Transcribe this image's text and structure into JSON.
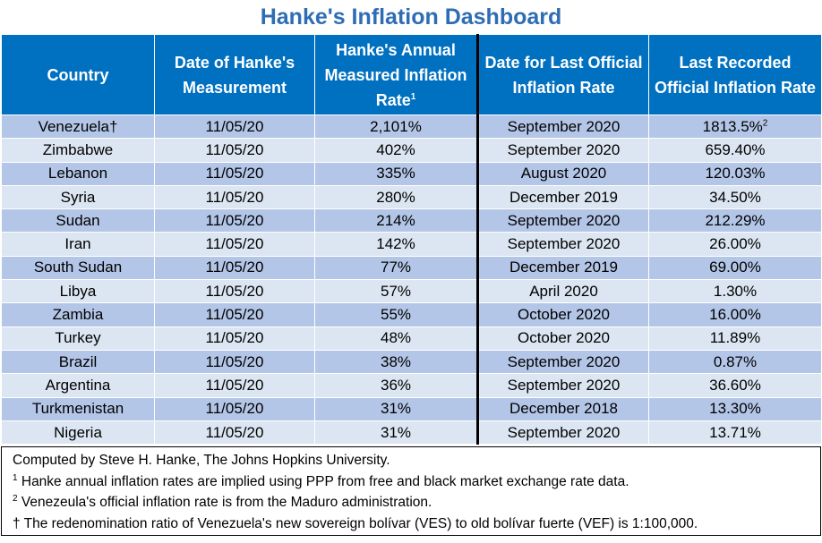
{
  "title": "Hanke's Inflation Dashboard",
  "headers": {
    "country": "Country",
    "date_hanke": "Date of Hanke's Measurement",
    "hanke_rate": "Hanke's Annual Measured Inflation Rate",
    "hanke_rate_sup": "1",
    "date_official": "Date for Last Official Inflation Rate",
    "official_rate": "Last Recorded Official Inflation Rate"
  },
  "rows": [
    {
      "country": "Venezuela",
      "country_mark": "†",
      "date_hanke": "11/05/20",
      "hanke_rate": "2,101%",
      "date_official": "September 2020",
      "official_rate": "1813.5%",
      "official_sup": "2"
    },
    {
      "country": "Zimbabwe",
      "country_mark": "",
      "date_hanke": "11/05/20",
      "hanke_rate": "402%",
      "date_official": "September 2020",
      "official_rate": "659.40%",
      "official_sup": ""
    },
    {
      "country": "Lebanon",
      "country_mark": "",
      "date_hanke": "11/05/20",
      "hanke_rate": "335%",
      "date_official": "August 2020",
      "official_rate": "120.03%",
      "official_sup": ""
    },
    {
      "country": "Syria",
      "country_mark": "",
      "date_hanke": "11/05/20",
      "hanke_rate": "280%",
      "date_official": "December 2019",
      "official_rate": "34.50%",
      "official_sup": ""
    },
    {
      "country": "Sudan",
      "country_mark": "",
      "date_hanke": "11/05/20",
      "hanke_rate": "214%",
      "date_official": "September 2020",
      "official_rate": "212.29%",
      "official_sup": ""
    },
    {
      "country": "Iran",
      "country_mark": "",
      "date_hanke": "11/05/20",
      "hanke_rate": "142%",
      "date_official": "September 2020",
      "official_rate": "26.00%",
      "official_sup": ""
    },
    {
      "country": "South Sudan",
      "country_mark": "",
      "date_hanke": "11/05/20",
      "hanke_rate": "77%",
      "date_official": "December 2019",
      "official_rate": "69.00%",
      "official_sup": ""
    },
    {
      "country": "Libya",
      "country_mark": "",
      "date_hanke": "11/05/20",
      "hanke_rate": "57%",
      "date_official": "April 2020",
      "official_rate": "1.30%",
      "official_sup": ""
    },
    {
      "country": "Zambia",
      "country_mark": "",
      "date_hanke": "11/05/20",
      "hanke_rate": "55%",
      "date_official": "October 2020",
      "official_rate": "16.00%",
      "official_sup": ""
    },
    {
      "country": "Turkey",
      "country_mark": "",
      "date_hanke": "11/05/20",
      "hanke_rate": "48%",
      "date_official": "October 2020",
      "official_rate": "11.89%",
      "official_sup": ""
    },
    {
      "country": "Brazil",
      "country_mark": "",
      "date_hanke": "11/05/20",
      "hanke_rate": "38%",
      "date_official": "September 2020",
      "official_rate": "0.87%",
      "official_sup": ""
    },
    {
      "country": "Argentina",
      "country_mark": "",
      "date_hanke": "11/05/20",
      "hanke_rate": "36%",
      "date_official": "September 2020",
      "official_rate": "36.60%",
      "official_sup": ""
    },
    {
      "country": "Turkmenistan",
      "country_mark": "",
      "date_hanke": "11/05/20",
      "hanke_rate": "31%",
      "date_official": "December 2018",
      "official_rate": "13.30%",
      "official_sup": ""
    },
    {
      "country": "Nigeria",
      "country_mark": "",
      "date_hanke": "11/05/20",
      "hanke_rate": "31%",
      "date_official": "September 2020",
      "official_rate": "13.71%",
      "official_sup": ""
    }
  ],
  "notes": {
    "credit": "Computed by Steve H. Hanke, The Johns Hopkins University.",
    "note1_mark": "1",
    "note1": " Hanke annual inflation rates are implied using PPP from free and black market exchange rate data.",
    "note2_mark": "2",
    "note2": " Venezeula's official inflation rate is from the Maduro administration.",
    "note3_mark": "†",
    "note3": " The redenomination ratio of Venezuela's new sovereign bolívar (VES) to old bolívar fuerte (VEF) is 1:100,000."
  },
  "colors": {
    "title": "#2E6DB4",
    "header_bg": "#0070C0",
    "row_odd": "#B4C6E7",
    "row_even": "#DCE6F2"
  }
}
